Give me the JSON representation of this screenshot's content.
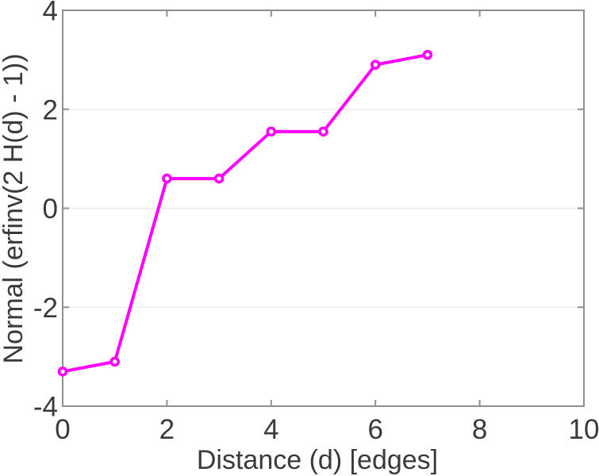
{
  "chart_data": {
    "type": "line",
    "title": "",
    "xlabel": "Distance (d) [edges]",
    "ylabel": "Normal (erfinv(2 H(d) - 1))",
    "x": [
      0,
      1,
      2,
      3,
      4,
      5,
      6,
      7
    ],
    "series": [
      {
        "name": "Normal(erfinv(2 H(d) - 1))",
        "values": [
          -3.3,
          -3.1,
          0.6,
          0.6,
          1.55,
          1.55,
          2.9,
          3.1
        ]
      }
    ],
    "xlim": [
      0,
      10
    ],
    "ylim": [
      -4,
      4
    ],
    "xticks": [
      "0",
      "2",
      "4",
      "6",
      "8",
      "10"
    ],
    "yticks": [
      "-4",
      "-2",
      "0",
      "2",
      "4"
    ],
    "grid": "horizontal-only",
    "legend": "none",
    "marker": "hollow-circle",
    "colors": {
      "line": "#ff00ff",
      "marker_face": "#ffffff",
      "axis": "#8f8f8f",
      "grid": "#ececec",
      "text": "#3a3a3a"
    }
  }
}
